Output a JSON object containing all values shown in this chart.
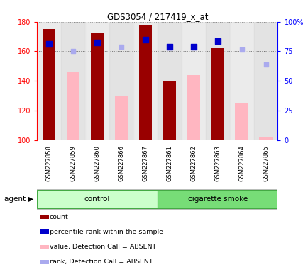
{
  "title": "GDS3054 / 217419_x_at",
  "samples": [
    "GSM227858",
    "GSM227859",
    "GSM227860",
    "GSM227866",
    "GSM227867",
    "GSM227861",
    "GSM227862",
    "GSM227863",
    "GSM227864",
    "GSM227865"
  ],
  "count_values": [
    175,
    null,
    172,
    null,
    178,
    140,
    null,
    162,
    null,
    null
  ],
  "absent_bar_values": [
    null,
    146,
    null,
    130,
    null,
    null,
    144,
    null,
    125,
    102
  ],
  "percentile_rank": [
    165,
    null,
    166,
    null,
    168,
    163,
    163,
    167,
    null,
    null
  ],
  "absent_rank_values": [
    null,
    160,
    null,
    163,
    null,
    null,
    163,
    null,
    161,
    151
  ],
  "ylim_left": [
    100,
    180
  ],
  "ylim_right": [
    0,
    100
  ],
  "yticks_left": [
    100,
    120,
    140,
    160,
    180
  ],
  "yticks_right": [
    0,
    25,
    50,
    75,
    100
  ],
  "yticklabels_right": [
    "0",
    "25",
    "50",
    "75",
    "100%"
  ],
  "bar_color_count": "#990000",
  "bar_color_absent": "#FFB6C1",
  "dot_color_rank": "#0000CC",
  "dot_color_absent_rank": "#AAAAEE",
  "legend_items": [
    {
      "label": "count",
      "color": "#990000"
    },
    {
      "label": "percentile rank within the sample",
      "color": "#0000CC"
    },
    {
      "label": "value, Detection Call = ABSENT",
      "color": "#FFB6C1"
    },
    {
      "label": "rank, Detection Call = ABSENT",
      "color": "#AAAAEE"
    }
  ]
}
